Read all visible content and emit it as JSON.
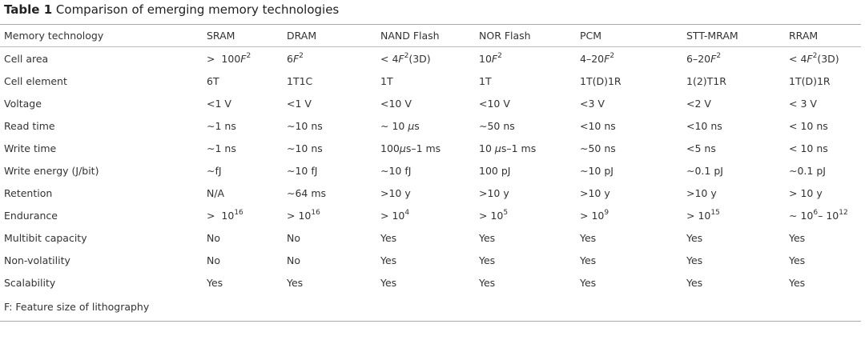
{
  "caption": {
    "label": "Table 1",
    "text": "Comparison of emerging memory technologies"
  },
  "columns": [
    "Memory technology",
    "SRAM",
    "DRAM",
    "NAND Flash",
    "NOR Flash",
    "PCM",
    "STT-MRAM",
    "RRAM"
  ],
  "rows": [
    {
      "label": "Cell area",
      "cells": [
        [
          {
            "t": ">  100"
          },
          {
            "t": "F",
            "s": "i"
          },
          {
            "t": "2",
            "s": "sup"
          }
        ],
        [
          {
            "t": "6"
          },
          {
            "t": "F",
            "s": "i"
          },
          {
            "t": "2",
            "s": "sup"
          }
        ],
        [
          {
            "t": "< 4"
          },
          {
            "t": "F",
            "s": "i"
          },
          {
            "t": "2",
            "s": "sup"
          },
          {
            "t": "(3D)"
          }
        ],
        [
          {
            "t": "10"
          },
          {
            "t": "F",
            "s": "i"
          },
          {
            "t": "2",
            "s": "sup"
          }
        ],
        [
          {
            "t": "4–20"
          },
          {
            "t": "F",
            "s": "i"
          },
          {
            "t": "2",
            "s": "sup"
          }
        ],
        [
          {
            "t": "6–20"
          },
          {
            "t": "F",
            "s": "i"
          },
          {
            "t": "2",
            "s": "sup"
          }
        ],
        [
          {
            "t": "< 4"
          },
          {
            "t": "F",
            "s": "i"
          },
          {
            "t": "2",
            "s": "sup"
          },
          {
            "t": "(3D)"
          }
        ]
      ]
    },
    {
      "label": "Cell element",
      "cells": [
        [
          {
            "t": "6T"
          }
        ],
        [
          {
            "t": "1T1C"
          }
        ],
        [
          {
            "t": "1T"
          }
        ],
        [
          {
            "t": "1T"
          }
        ],
        [
          {
            "t": "1T(D)1R"
          }
        ],
        [
          {
            "t": "1(2)T1R"
          }
        ],
        [
          {
            "t": "1T(D)1R"
          }
        ]
      ]
    },
    {
      "label": "Voltage",
      "cells": [
        [
          {
            "t": "<1 V"
          }
        ],
        [
          {
            "t": "<1 V"
          }
        ],
        [
          {
            "t": "<10 V"
          }
        ],
        [
          {
            "t": "<10 V"
          }
        ],
        [
          {
            "t": "<3 V"
          }
        ],
        [
          {
            "t": "<2 V"
          }
        ],
        [
          {
            "t": "< 3 V"
          }
        ]
      ]
    },
    {
      "label": "Read time",
      "cells": [
        [
          {
            "t": "∼1 ns"
          }
        ],
        [
          {
            "t": "∼10 ns"
          }
        ],
        [
          {
            "t": "∼ 10 "
          },
          {
            "t": "μ",
            "s": "i"
          },
          {
            "t": "s"
          }
        ],
        [
          {
            "t": "∼50 ns"
          }
        ],
        [
          {
            "t": "<10 ns"
          }
        ],
        [
          {
            "t": "<10 ns"
          }
        ],
        [
          {
            "t": "< 10 ns"
          }
        ]
      ]
    },
    {
      "label": "Write time",
      "cells": [
        [
          {
            "t": "∼1 ns"
          }
        ],
        [
          {
            "t": "∼10 ns"
          }
        ],
        [
          {
            "t": "100"
          },
          {
            "t": "μ",
            "s": "i"
          },
          {
            "t": "s–1 ms"
          }
        ],
        [
          {
            "t": "10 "
          },
          {
            "t": "μ",
            "s": "i"
          },
          {
            "t": "s–1 ms"
          }
        ],
        [
          {
            "t": "∼50 ns"
          }
        ],
        [
          {
            "t": "<5 ns"
          }
        ],
        [
          {
            "t": "< 10 ns"
          }
        ]
      ]
    },
    {
      "label": "Write energy (J/bit)",
      "cells": [
        [
          {
            "t": "∼fJ"
          }
        ],
        [
          {
            "t": "∼10 fJ"
          }
        ],
        [
          {
            "t": "∼10 fJ"
          }
        ],
        [
          {
            "t": "100 pJ"
          }
        ],
        [
          {
            "t": "∼10 pJ"
          }
        ],
        [
          {
            "t": "∼0.1 pJ"
          }
        ],
        [
          {
            "t": "∼0.1 pJ"
          }
        ]
      ]
    },
    {
      "label": "Retention",
      "cells": [
        [
          {
            "t": "N/A"
          }
        ],
        [
          {
            "t": "∼64 ms"
          }
        ],
        [
          {
            "t": ">10 y"
          }
        ],
        [
          {
            "t": ">10 y"
          }
        ],
        [
          {
            "t": ">10 y"
          }
        ],
        [
          {
            "t": ">10 y"
          }
        ],
        [
          {
            "t": "> 10 y"
          }
        ]
      ]
    },
    {
      "label": "Endurance",
      "cells": [
        [
          {
            "t": ">  10"
          },
          {
            "t": "16",
            "s": "sup"
          }
        ],
        [
          {
            "t": "> 10"
          },
          {
            "t": "16",
            "s": "sup"
          }
        ],
        [
          {
            "t": "> 10"
          },
          {
            "t": "4",
            "s": "sup"
          }
        ],
        [
          {
            "t": "> 10"
          },
          {
            "t": "5",
            "s": "sup"
          }
        ],
        [
          {
            "t": "> 10"
          },
          {
            "t": "9",
            "s": "sup"
          }
        ],
        [
          {
            "t": "> 10"
          },
          {
            "t": "15",
            "s": "sup"
          }
        ],
        [
          {
            "t": "∼ 10"
          },
          {
            "t": "6",
            "s": "sup"
          },
          {
            "t": "– 10"
          },
          {
            "t": "12",
            "s": "sup"
          }
        ]
      ]
    },
    {
      "label": "Multibit capacity",
      "cells": [
        [
          {
            "t": "No"
          }
        ],
        [
          {
            "t": "No"
          }
        ],
        [
          {
            "t": "Yes"
          }
        ],
        [
          {
            "t": "Yes"
          }
        ],
        [
          {
            "t": "Yes"
          }
        ],
        [
          {
            "t": "Yes"
          }
        ],
        [
          {
            "t": "Yes"
          }
        ]
      ]
    },
    {
      "label": "Non-volatility",
      "cells": [
        [
          {
            "t": "No"
          }
        ],
        [
          {
            "t": "No"
          }
        ],
        [
          {
            "t": "Yes"
          }
        ],
        [
          {
            "t": "Yes"
          }
        ],
        [
          {
            "t": "Yes"
          }
        ],
        [
          {
            "t": "Yes"
          }
        ],
        [
          {
            "t": "Yes"
          }
        ]
      ]
    },
    {
      "label": "Scalability",
      "cells": [
        [
          {
            "t": "Yes"
          }
        ],
        [
          {
            "t": "Yes"
          }
        ],
        [
          {
            "t": "Yes"
          }
        ],
        [
          {
            "t": "Yes"
          }
        ],
        [
          {
            "t": "Yes"
          }
        ],
        [
          {
            "t": "Yes"
          }
        ],
        [
          {
            "t": "Yes"
          }
        ]
      ]
    }
  ],
  "footnote": "F: Feature size of lithography"
}
